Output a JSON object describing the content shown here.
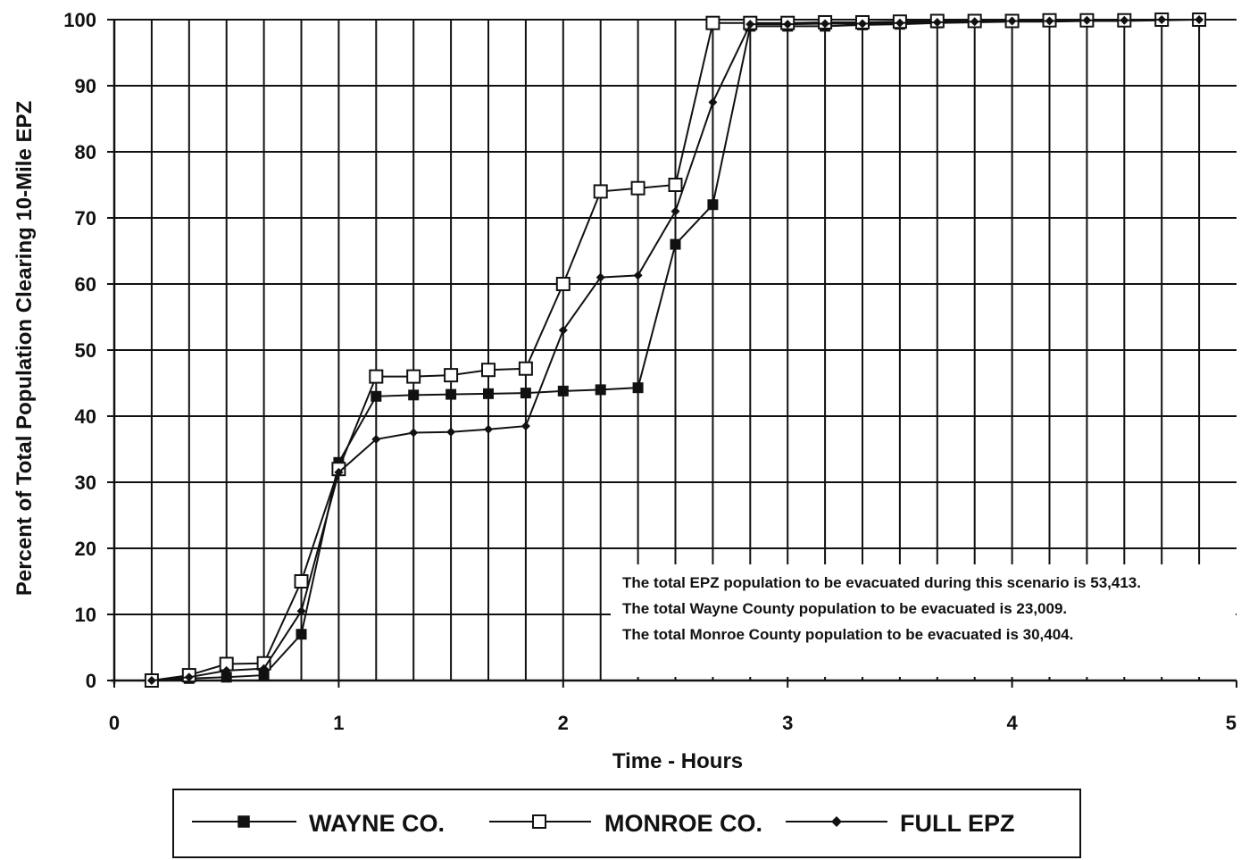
{
  "chart_data": {
    "type": "line",
    "xlabel": "Time - Hours",
    "ylabel": "Percent of Total Population Clearing 10-Mile EPZ",
    "xlim": [
      0,
      5
    ],
    "ylim": [
      0,
      100
    ],
    "x_ticks": [
      "0",
      "1",
      "2",
      "3",
      "4",
      "5"
    ],
    "y_ticks": [
      "0",
      "10",
      "20",
      "30",
      "40",
      "50",
      "60",
      "70",
      "80",
      "90",
      "100"
    ],
    "grid": true,
    "legend_position": "bottom",
    "annotations": [
      "The total EPZ population to be evacuated during this scenario is 53,413.",
      "The total Wayne County population to be evacuated is 23,009.",
      "The total Monroe County population to be evacuated is 30,404."
    ],
    "series": [
      {
        "name": "WAYNE CO.",
        "marker": "filled-square",
        "x": [
          0.1667,
          0.3333,
          0.5,
          0.6667,
          0.8333,
          1,
          1.1667,
          1.3333,
          1.5,
          1.6667,
          1.8333,
          2,
          2.1667,
          2.3333,
          2.5,
          2.6667,
          2.8333,
          3,
          3.1667,
          3.3333,
          3.5,
          3.6667,
          3.8333,
          4,
          4.1667,
          4.3333,
          4.5,
          4.6667,
          4.8333
        ],
        "values": [
          0,
          0.3,
          0.5,
          0.8,
          7,
          33,
          43,
          43.2,
          43.3,
          43.4,
          43.5,
          43.8,
          44,
          44.3,
          66,
          72,
          99,
          99,
          99,
          99.2,
          99.3,
          99.5,
          99.6,
          99.7,
          99.7,
          99.8,
          99.8,
          99.9,
          100
        ]
      },
      {
        "name": "MONROE CO.",
        "marker": "open-square",
        "x": [
          0.1667,
          0.3333,
          0.5,
          0.6667,
          0.8333,
          1,
          1.1667,
          1.3333,
          1.5,
          1.6667,
          1.8333,
          2,
          2.1667,
          2.3333,
          2.5,
          2.6667,
          2.8333,
          3,
          3.1667,
          3.3333,
          3.5,
          3.6667,
          3.8333,
          4,
          4.1667,
          4.3333,
          4.5,
          4.6667,
          4.8333
        ],
        "values": [
          0,
          0.8,
          2.5,
          2.6,
          15,
          32,
          46,
          46,
          46.2,
          47,
          47.2,
          60,
          74,
          74.5,
          75,
          99.5,
          99.5,
          99.5,
          99.6,
          99.6,
          99.7,
          99.8,
          99.8,
          99.8,
          99.9,
          99.9,
          99.9,
          100,
          100
        ]
      },
      {
        "name": "FULL EPZ",
        "marker": "diamond",
        "x": [
          0.1667,
          0.3333,
          0.5,
          0.6667,
          0.8333,
          1,
          1.1667,
          1.3333,
          1.5,
          1.6667,
          1.8333,
          2,
          2.1667,
          2.3333,
          2.5,
          2.6667,
          2.8333,
          3,
          3.1667,
          3.3333,
          3.5,
          3.6667,
          3.8333,
          4,
          4.1667,
          4.3333,
          4.5,
          4.6667,
          4.8333
        ],
        "values": [
          0,
          0.5,
          1.5,
          1.8,
          10.5,
          31.5,
          36.5,
          37.5,
          37.6,
          38,
          38.5,
          53,
          61,
          61.3,
          71,
          87.5,
          99.3,
          99.3,
          99.4,
          99.4,
          99.5,
          99.6,
          99.7,
          99.8,
          99.8,
          99.9,
          99.9,
          100,
          100
        ]
      }
    ]
  }
}
